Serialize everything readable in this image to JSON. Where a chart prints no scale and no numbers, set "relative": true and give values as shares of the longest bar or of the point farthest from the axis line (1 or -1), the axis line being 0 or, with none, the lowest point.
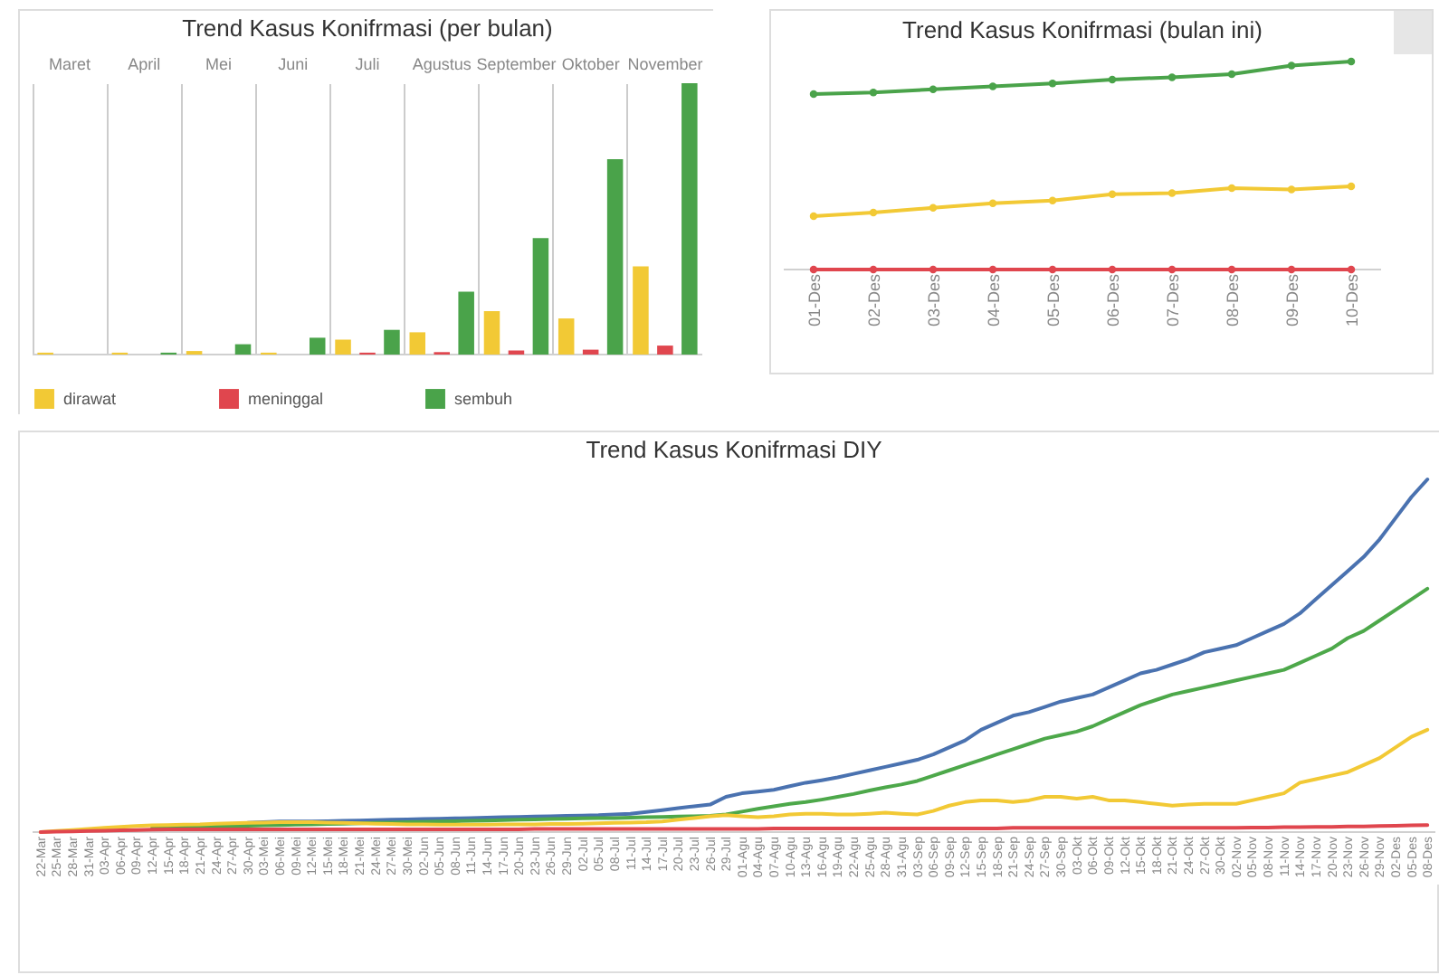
{
  "chart_data": [
    {
      "type": "bar",
      "title": "Trend Kasus Konifrmasi (per bulan)",
      "relative": true,
      "grid": "x",
      "legend": "bottom",
      "categories": [
        "Maret",
        "April",
        "Mei",
        "Juni",
        "Juli",
        "Agustus",
        "September",
        "Oktober",
        "November"
      ],
      "series": [
        {
          "name": "dirawat",
          "color": "#f2c935",
          "values": [
            0.007,
            0.007,
            0.013,
            0.007,
            0.055,
            0.082,
            0.16,
            0.133,
            0.325
          ]
        },
        {
          "name": "meninggal",
          "color": "#e0464e",
          "values": [
            0,
            0,
            0,
            0,
            0.007,
            0.009,
            0.015,
            0.018,
            0.033
          ]
        },
        {
          "name": "sembuh",
          "color": "#4aa34a",
          "values": [
            0,
            0.007,
            0.038,
            0.062,
            0.091,
            0.232,
            0.429,
            0.72,
            1
          ]
        }
      ]
    },
    {
      "type": "line",
      "title": "Trend Kasus Konifrmasi (bulan ini)",
      "relative": true,
      "marker": "circle",
      "categories": [
        "01-Des",
        "02-Des",
        "03-Des",
        "04-Des",
        "05-Des",
        "06-Des",
        "07-Des",
        "08-Des",
        "09-Des",
        "10-Des"
      ],
      "series": [
        {
          "color": "#4aa34a",
          "values": [
            0.843,
            0.851,
            0.866,
            0.88,
            0.895,
            0.913,
            0.924,
            0.939,
            0.98,
            1
          ]
        },
        {
          "color": "#f2c935",
          "values": [
            0.257,
            0.274,
            0.297,
            0.318,
            0.332,
            0.362,
            0.367,
            0.391,
            0.385,
            0.4
          ]
        },
        {
          "color": "#e0464e",
          "values": [
            0,
            0,
            0,
            0,
            0,
            0,
            0,
            0,
            0,
            0
          ]
        }
      ]
    },
    {
      "type": "line",
      "title": "Trend Kasus Konifrmasi DIY",
      "relative": true,
      "categories": [
        "22-Mar",
        "25-Mar",
        "28-Mar",
        "31-Mar",
        "03-Apr",
        "06-Apr",
        "09-Apr",
        "12-Apr",
        "15-Apr",
        "18-Apr",
        "21-Apr",
        "24-Apr",
        "27-Apr",
        "30-Apr",
        "03-Mei",
        "06-Mei",
        "09-Mei",
        "12-Mei",
        "15-Mei",
        "18-Mei",
        "21-Mei",
        "24-Mei",
        "27-Mei",
        "30-Mei",
        "02-Jun",
        "05-Jun",
        "08-Jun",
        "11-Jun",
        "14-Jun",
        "17-Jun",
        "20-Jun",
        "23-Jun",
        "26-Jun",
        "29-Jun",
        "02-Jul",
        "05-Jul",
        "08-Jul",
        "11-Jul",
        "14-Jul",
        "17-Jul",
        "20-Jul",
        "23-Jul",
        "26-Jul",
        "29-Jul",
        "01-Agu",
        "04-Agu",
        "07-Agu",
        "10-Agu",
        "13-Agu",
        "16-Agu",
        "19-Agu",
        "22-Agu",
        "25-Agu",
        "28-Agu",
        "31-Agu",
        "03-Sep",
        "06-Sep",
        "09-Sep",
        "12-Sep",
        "15-Sep",
        "18-Sep",
        "21-Sep",
        "24-Sep",
        "27-Sep",
        "30-Sep",
        "03-Okt",
        "06-Okt",
        "09-Okt",
        "12-Okt",
        "15-Okt",
        "18-Okt",
        "21-Okt",
        "24-Okt",
        "27-Okt",
        "30-Okt",
        "02-Nov",
        "05-Nov",
        "08-Nov",
        "11-Nov",
        "14-Nov",
        "17-Nov",
        "20-Nov",
        "23-Nov",
        "26-Nov",
        "29-Nov",
        "02-Des",
        "05-Des",
        "08-Des"
      ],
      "series": [
        {
          "color": "#4a72b0",
          "values": [
            null,
            null,
            null,
            null,
            null,
            null,
            null,
            null,
            null,
            null,
            null,
            null,
            null,
            0.026,
            0.028,
            0.03,
            0.03,
            0.03,
            0.031,
            0.032,
            0.033,
            0.034,
            0.035,
            0.036,
            0.037,
            0.038,
            0.039,
            0.04,
            0.041,
            0.042,
            0.043,
            0.044,
            0.045,
            0.046,
            0.047,
            0.048,
            0.05,
            0.052,
            0.057,
            0.062,
            0.068,
            0.073,
            0.078,
            0.1,
            0.11,
            0.115,
            0.12,
            0.13,
            0.14,
            0.147,
            0.155,
            0.165,
            0.175,
            0.185,
            0.195,
            0.205,
            0.22,
            0.24,
            0.26,
            0.29,
            0.31,
            0.33,
            0.34,
            0.355,
            0.37,
            0.38,
            0.39,
            0.41,
            0.43,
            0.45,
            0.46,
            0.475,
            0.49,
            0.51,
            0.52,
            0.53,
            0.55,
            0.57,
            0.59,
            0.62,
            0.66,
            0.7,
            0.74,
            0.78,
            0.83,
            0.89,
            0.95,
            1
          ]
        },
        {
          "color": "#4da84a",
          "values": [
            null,
            null,
            null,
            null,
            null,
            null,
            null,
            0.012,
            0.013,
            0.014,
            0.015,
            0.016,
            0.017,
            0.018,
            0.019,
            0.02,
            0.021,
            0.022,
            0.023,
            0.024,
            0.025,
            0.026,
            0.027,
            0.028,
            0.029,
            0.03,
            0.031,
            0.032,
            0.033,
            0.034,
            0.035,
            0.036,
            0.037,
            0.038,
            0.039,
            0.04,
            0.04,
            0.041,
            0.042,
            0.043,
            0.044,
            0.045,
            0.046,
            0.05,
            0.058,
            0.066,
            0.073,
            0.08,
            0.085,
            0.092,
            0.1,
            0.108,
            0.118,
            0.127,
            0.135,
            0.145,
            0.16,
            0.175,
            0.19,
            0.205,
            0.22,
            0.235,
            0.25,
            0.265,
            0.275,
            0.285,
            0.3,
            0.32,
            0.34,
            0.36,
            0.375,
            0.39,
            0.4,
            0.41,
            0.42,
            0.43,
            0.44,
            0.45,
            0.46,
            0.48,
            0.5,
            0.52,
            0.55,
            0.57,
            0.6,
            0.63,
            0.66,
            0.69
          ]
        },
        {
          "color": "#f2c935",
          "values": [
            0,
            0.003,
            0.006,
            0.009,
            0.012,
            0.015,
            0.017,
            0.019,
            0.02,
            0.021,
            0.022,
            0.024,
            0.025,
            0.026,
            0.027,
            0.028,
            0.028,
            0.028,
            0.027,
            0.026,
            0.025,
            0.024,
            0.023,
            0.022,
            0.022,
            0.021,
            0.021,
            0.021,
            0.021,
            0.022,
            0.022,
            0.022,
            0.023,
            0.023,
            0.024,
            0.025,
            0.026,
            0.027,
            0.028,
            0.03,
            0.035,
            0.04,
            0.045,
            0.048,
            0.045,
            0.042,
            0.045,
            0.05,
            0.052,
            0.052,
            0.05,
            0.05,
            0.052,
            0.055,
            0.052,
            0.05,
            0.06,
            0.075,
            0.085,
            0.09,
            0.09,
            0.085,
            0.09,
            0.1,
            0.1,
            0.095,
            0.1,
            0.09,
            0.09,
            0.085,
            0.08,
            0.075,
            0.078,
            0.08,
            0.08,
            0.08,
            0.09,
            0.1,
            0.11,
            0.14,
            0.15,
            0.16,
            0.17,
            0.19,
            0.21,
            0.24,
            0.27,
            0.29
          ]
        },
        {
          "color": "#e0464e",
          "values": [
            0,
            0.001,
            0.002,
            0.003,
            0.004,
            0.005,
            0.006,
            0.007,
            0.008,
            0.008,
            0.008,
            0.008,
            0.008,
            0.008,
            0.008,
            0.008,
            0.008,
            0.008,
            0.008,
            0.008,
            0.008,
            0.008,
            0.008,
            0.008,
            0.008,
            0.008,
            0.008,
            0.008,
            0.008,
            0.008,
            0.008,
            0.009,
            0.009,
            0.009,
            0.009,
            0.009,
            0.009,
            0.009,
            0.009,
            0.009,
            0.009,
            0.009,
            0.009,
            0.009,
            0.009,
            0.009,
            0.01,
            0.01,
            0.01,
            0.01,
            0.01,
            0.01,
            0.01,
            0.01,
            0.01,
            0.01,
            0.01,
            0.01,
            0.01,
            0.01,
            0.01,
            0.012,
            0.012,
            0.012,
            0.012,
            0.012,
            0.012,
            0.012,
            0.012,
            0.012,
            0.012,
            0.012,
            0.012,
            0.012,
            0.012,
            0.012,
            0.013,
            0.013,
            0.014,
            0.014,
            0.015,
            0.015,
            0.016,
            0.016,
            0.017,
            0.018,
            0.019,
            0.02
          ]
        }
      ]
    }
  ]
}
